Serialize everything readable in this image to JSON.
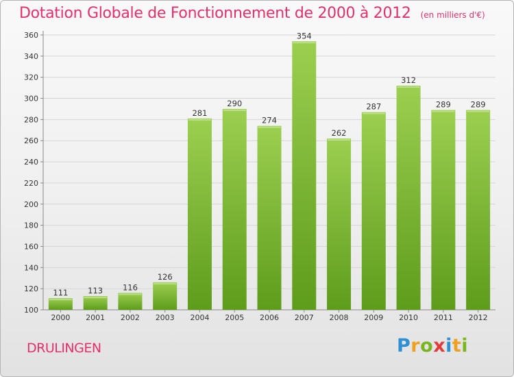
{
  "header": {
    "title": "Dotation Globale de Fonctionnement de 2000 à 2012",
    "subtitle": "(en milliers d'€)"
  },
  "footer": {
    "city": "DRULINGEN",
    "logo": "Proxiti"
  },
  "colors": {
    "title": "#e3306a",
    "bar_top": "#9ccf50",
    "bar_bottom": "#5e9c1c"
  },
  "chart_data": {
    "type": "bar",
    "title": "Dotation Globale de Fonctionnement de 2000 à 2012",
    "subtitle": "(en milliers d'€)",
    "categories": [
      "2000",
      "2001",
      "2002",
      "2003",
      "2004",
      "2005",
      "2006",
      "2007",
      "2008",
      "2009",
      "2010",
      "2011",
      "2012"
    ],
    "values": [
      111,
      113,
      116,
      126,
      281,
      290,
      274,
      354,
      262,
      287,
      312,
      289,
      289
    ],
    "ylim": [
      100,
      360
    ],
    "yticks": [
      100,
      120,
      140,
      160,
      180,
      200,
      220,
      240,
      260,
      280,
      300,
      320,
      340,
      360
    ],
    "grid": true,
    "xlabel": "",
    "ylabel": ""
  }
}
